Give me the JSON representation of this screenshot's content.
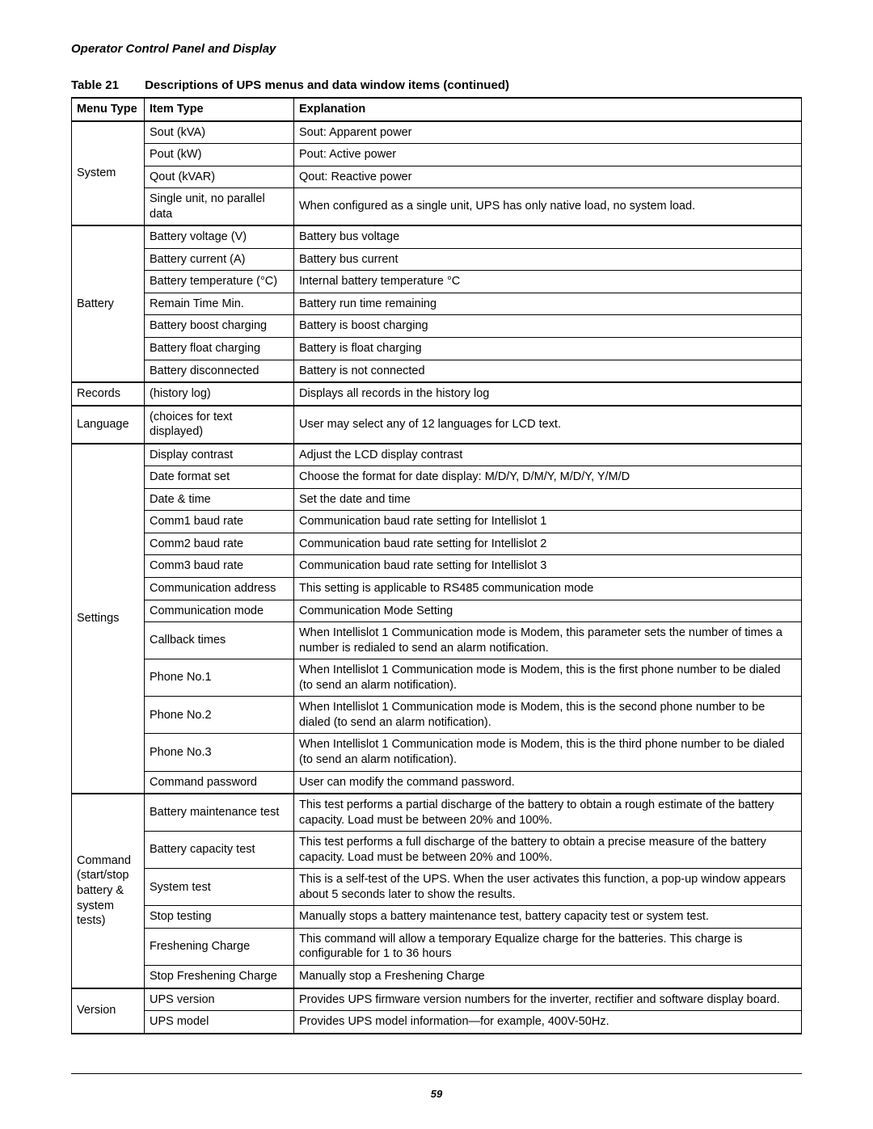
{
  "header": "Operator Control Panel and Display",
  "table_number": "Table 21",
  "table_title": "Descriptions of UPS menus and data window items (continued)",
  "columns": [
    "Menu Type",
    "Item Type",
    "Explanation"
  ],
  "page_number": "59",
  "groups": [
    {
      "menu": "System",
      "rows": [
        {
          "item": "Sout (kVA)",
          "expl": "Sout: Apparent power"
        },
        {
          "item": "Pout (kW)",
          "expl": "Pout: Active power"
        },
        {
          "item": "Qout (kVAR)",
          "expl": "Qout: Reactive power"
        },
        {
          "item": "Single unit, no parallel data",
          "expl": "When configured as a single unit, UPS has only native load, no system load."
        }
      ]
    },
    {
      "menu": "Battery",
      "rows": [
        {
          "item": "Battery voltage (V)",
          "expl": "Battery bus voltage"
        },
        {
          "item": "Battery current (A)",
          "expl": "Battery bus current"
        },
        {
          "item": "Battery temperature (°C)",
          "expl": "Internal battery temperature °C"
        },
        {
          "item": "Remain Time Min.",
          "expl": "Battery run time remaining"
        },
        {
          "item": "Battery boost charging",
          "expl": "Battery is boost charging"
        },
        {
          "item": "Battery float charging",
          "expl": "Battery is float charging"
        },
        {
          "item": "Battery disconnected",
          "expl": "Battery is not connected"
        }
      ]
    },
    {
      "menu": "Records",
      "rows": [
        {
          "item": "(history log)",
          "expl": "Displays all records in the history log"
        }
      ]
    },
    {
      "menu": "Language",
      "rows": [
        {
          "item": "(choices for text displayed)",
          "expl": "User may select any of 12 languages for LCD text."
        }
      ]
    },
    {
      "menu": "Settings",
      "rows": [
        {
          "item": "Display contrast",
          "expl": "Adjust the LCD display contrast"
        },
        {
          "item": "Date format set",
          "expl": "Choose the format for date display: M/D/Y, D/M/Y, M/D/Y, Y/M/D"
        },
        {
          "item": "Date & time",
          "expl": "Set the date and time"
        },
        {
          "item": "Comm1 baud rate",
          "expl": "Communication baud rate setting for Intellislot 1"
        },
        {
          "item": "Comm2 baud rate",
          "expl": "Communication baud rate setting for Intellislot 2"
        },
        {
          "item": "Comm3 baud rate",
          "expl": "Communication baud rate setting for Intellislot 3"
        },
        {
          "item": "Communication address",
          "expl": "This setting is applicable to RS485 communication mode"
        },
        {
          "item": "Communication mode",
          "expl": "Communication Mode Setting"
        },
        {
          "item": "Callback times",
          "expl": "When Intellislot 1 Communication mode is Modem, this parameter sets the number of times a number is redialed to send an alarm notification."
        },
        {
          "item": "Phone No.1",
          "expl": "When Intellislot 1 Communication mode is Modem, this is the first phone number to be dialed (to send an alarm notification)."
        },
        {
          "item": "Phone No.2",
          "expl": "When Intellislot 1 Communication mode is Modem, this is the second phone number to be dialed (to send an alarm notification)."
        },
        {
          "item": "Phone No.3",
          "expl": "When Intellislot 1 Communication mode is Modem, this is the third phone number to be dialed (to send an alarm notification)."
        },
        {
          "item": "Command password",
          "expl": "User can modify the command password."
        }
      ]
    },
    {
      "menu": "Command (start/stop battery & system tests)",
      "rows": [
        {
          "item": "Battery maintenance test",
          "expl": "This test performs a partial discharge of the battery to obtain a rough estimate of the battery capacity. Load must be between 20% and 100%."
        },
        {
          "item": "Battery capacity test",
          "expl": "This test performs a full discharge of the battery to obtain a precise measure of the battery capacity. Load must be between 20% and 100%."
        },
        {
          "item": "System test",
          "expl": "This is a self-test of the UPS. When the user activates this function, a pop-up window appears about 5 seconds later to show the results."
        },
        {
          "item": "Stop testing",
          "expl": "Manually stops a battery maintenance test, battery capacity test or system test."
        },
        {
          "item": "Freshening Charge",
          "expl": "This command will allow a temporary Equalize charge for the batteries. This charge is configurable for 1 to 36 hours"
        },
        {
          "item": "Stop Freshening Charge",
          "expl": "Manually stop a Freshening Charge"
        }
      ]
    },
    {
      "menu": "Version",
      "rows": [
        {
          "item": "UPS version",
          "expl": "Provides UPS firmware version numbers for the inverter, rectifier and software display board."
        },
        {
          "item": "UPS model",
          "expl": "Provides UPS model information—for example, 400V-50Hz."
        }
      ]
    }
  ]
}
